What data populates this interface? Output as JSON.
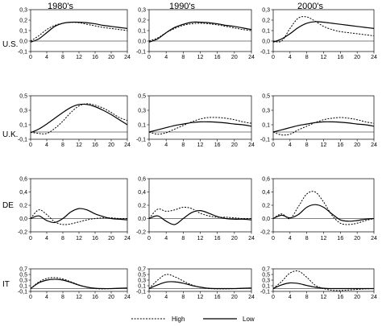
{
  "col_titles": [
    "1980's",
    "1990's",
    "2000's"
  ],
  "row_labels": [
    "U.S.",
    "U.K.",
    "DE",
    "IT"
  ],
  "legend": {
    "high_label": "High",
    "low_label": "Low"
  },
  "styles": {
    "high": {
      "color": "#000000",
      "dash": "dotted"
    },
    "low": {
      "color": "#000000",
      "dash": "solid"
    }
  },
  "chart_data": [
    {
      "type": "line",
      "row": "U.S.",
      "column": "1980's",
      "x": [
        0,
        2,
        4,
        6,
        8,
        10,
        12,
        14,
        16,
        18,
        20,
        22,
        24
      ],
      "xticks": [
        0,
        4,
        8,
        12,
        16,
        20,
        24
      ],
      "ylim": [
        -0.1,
        0.3
      ],
      "yticks": [
        -0.1,
        0.0,
        0.1,
        0.2,
        0.3
      ],
      "series": [
        {
          "name": "High",
          "values": [
            0.0,
            0.05,
            0.11,
            0.15,
            0.17,
            0.18,
            0.175,
            0.16,
            0.145,
            0.13,
            0.12,
            0.11,
            0.1
          ]
        },
        {
          "name": "Low",
          "values": [
            -0.01,
            0.02,
            0.08,
            0.14,
            0.17,
            0.18,
            0.18,
            0.175,
            0.165,
            0.15,
            0.14,
            0.13,
            0.12
          ]
        }
      ]
    },
    {
      "type": "line",
      "row": "U.S.",
      "column": "1990's",
      "x": [
        0,
        2,
        4,
        6,
        8,
        10,
        12,
        14,
        16,
        18,
        20,
        22,
        24
      ],
      "xticks": [
        0,
        4,
        8,
        12,
        16,
        20,
        24
      ],
      "ylim": [
        -0.1,
        0.3
      ],
      "yticks": [
        -0.1,
        0.0,
        0.1,
        0.2,
        0.3
      ],
      "series": [
        {
          "name": "High",
          "values": [
            0.0,
            0.03,
            0.08,
            0.12,
            0.15,
            0.165,
            0.17,
            0.165,
            0.155,
            0.14,
            0.125,
            0.11,
            0.1
          ]
        },
        {
          "name": "Low",
          "values": [
            -0.01,
            0.02,
            0.08,
            0.13,
            0.16,
            0.18,
            0.18,
            0.175,
            0.165,
            0.15,
            0.14,
            0.125,
            0.11
          ]
        }
      ]
    },
    {
      "type": "line",
      "row": "U.S.",
      "column": "2000's",
      "x": [
        0,
        2,
        4,
        6,
        8,
        10,
        12,
        14,
        16,
        18,
        20,
        22,
        24
      ],
      "xticks": [
        0,
        4,
        8,
        12,
        16,
        20,
        24
      ],
      "ylim": [
        -0.1,
        0.3
      ],
      "yticks": [
        -0.1,
        0.0,
        0.1,
        0.2,
        0.3
      ],
      "series": [
        {
          "name": "High",
          "values": [
            0.0,
            0.0,
            0.12,
            0.22,
            0.23,
            0.19,
            0.14,
            0.11,
            0.09,
            0.08,
            0.07,
            0.06,
            0.05
          ]
        },
        {
          "name": "Low",
          "values": [
            -0.01,
            0.02,
            0.07,
            0.13,
            0.17,
            0.185,
            0.18,
            0.17,
            0.16,
            0.15,
            0.14,
            0.13,
            0.12
          ]
        }
      ]
    },
    {
      "type": "line",
      "row": "U.K.",
      "column": "1980's",
      "x": [
        0,
        2,
        4,
        6,
        8,
        10,
        12,
        14,
        16,
        18,
        20,
        22,
        24
      ],
      "xticks": [
        0,
        4,
        8,
        12,
        16,
        20,
        24
      ],
      "ylim": [
        -0.1,
        0.5
      ],
      "yticks": [
        -0.1,
        0.1,
        0.3,
        0.5
      ],
      "series": [
        {
          "name": "High",
          "values": [
            0.0,
            -0.02,
            -0.02,
            0.05,
            0.15,
            0.27,
            0.36,
            0.39,
            0.37,
            0.33,
            0.27,
            0.2,
            0.16
          ]
        },
        {
          "name": "Low",
          "values": [
            -0.01,
            0.04,
            0.11,
            0.19,
            0.27,
            0.34,
            0.38,
            0.38,
            0.35,
            0.3,
            0.24,
            0.17,
            0.1
          ]
        }
      ]
    },
    {
      "type": "line",
      "row": "U.K.",
      "column": "1990's",
      "x": [
        0,
        2,
        4,
        6,
        8,
        10,
        12,
        14,
        16,
        18,
        20,
        22,
        24
      ],
      "xticks": [
        0,
        4,
        8,
        12,
        16,
        20,
        24
      ],
      "ylim": [
        -0.1,
        0.5
      ],
      "yticks": [
        -0.1,
        0.1,
        0.3,
        0.5
      ],
      "series": [
        {
          "name": "High",
          "values": [
            0.0,
            -0.03,
            -0.01,
            0.04,
            0.09,
            0.14,
            0.18,
            0.2,
            0.2,
            0.19,
            0.17,
            0.14,
            0.12
          ]
        },
        {
          "name": "Low",
          "values": [
            0.0,
            0.03,
            0.06,
            0.09,
            0.11,
            0.13,
            0.14,
            0.14,
            0.135,
            0.125,
            0.11,
            0.1,
            0.08
          ]
        }
      ]
    },
    {
      "type": "line",
      "row": "U.K.",
      "column": "2000's",
      "x": [
        0,
        2,
        4,
        6,
        8,
        10,
        12,
        14,
        16,
        18,
        20,
        22,
        24
      ],
      "xticks": [
        0,
        4,
        8,
        12,
        16,
        20,
        24
      ],
      "ylim": [
        -0.1,
        0.5
      ],
      "yticks": [
        -0.1,
        0.1,
        0.3,
        0.5
      ],
      "series": [
        {
          "name": "High",
          "values": [
            0.0,
            -0.04,
            -0.03,
            0.03,
            0.08,
            0.13,
            0.17,
            0.19,
            0.2,
            0.19,
            0.17,
            0.14,
            0.12
          ]
        },
        {
          "name": "Low",
          "values": [
            0.0,
            0.03,
            0.06,
            0.09,
            0.11,
            0.13,
            0.14,
            0.14,
            0.135,
            0.125,
            0.11,
            0.1,
            0.08
          ]
        }
      ]
    },
    {
      "type": "line",
      "row": "DE",
      "column": "1980's",
      "x": [
        0,
        2,
        4,
        6,
        8,
        10,
        12,
        14,
        16,
        18,
        20,
        22,
        24
      ],
      "xticks": [
        0,
        4,
        8,
        12,
        16,
        20,
        24
      ],
      "ylim": [
        -0.2,
        0.6
      ],
      "yticks": [
        -0.2,
        0.0,
        0.2,
        0.4,
        0.6
      ],
      "series": [
        {
          "name": "High",
          "values": [
            0.0,
            0.13,
            0.06,
            -0.05,
            -0.09,
            -0.08,
            -0.05,
            -0.02,
            0.0,
            0.01,
            0.01,
            0.0,
            0.0
          ]
        },
        {
          "name": "Low",
          "values": [
            0.0,
            0.04,
            -0.03,
            -0.06,
            0.0,
            0.1,
            0.15,
            0.13,
            0.07,
            0.03,
            0.0,
            -0.01,
            -0.02
          ]
        }
      ]
    },
    {
      "type": "line",
      "row": "DE",
      "column": "1990's",
      "x": [
        0,
        2,
        4,
        6,
        8,
        10,
        12,
        14,
        16,
        18,
        20,
        22,
        24
      ],
      "xticks": [
        0,
        4,
        8,
        12,
        16,
        20,
        24
      ],
      "ylim": [
        -0.2,
        0.6
      ],
      "yticks": [
        -0.2,
        0.0,
        0.2,
        0.4,
        0.6
      ],
      "series": [
        {
          "name": "High",
          "values": [
            0.0,
            0.14,
            0.11,
            0.13,
            0.17,
            0.15,
            0.08,
            0.04,
            0.02,
            0.02,
            0.01,
            0.0,
            0.0
          ]
        },
        {
          "name": "Low",
          "values": [
            0.0,
            0.04,
            -0.04,
            -0.09,
            0.0,
            0.09,
            0.12,
            0.08,
            0.03,
            0.0,
            -0.01,
            -0.01,
            -0.02
          ]
        }
      ]
    },
    {
      "type": "line",
      "row": "DE",
      "column": "2000's",
      "x": [
        0,
        2,
        4,
        6,
        8,
        10,
        12,
        14,
        16,
        18,
        20,
        22,
        24
      ],
      "xticks": [
        0,
        4,
        8,
        12,
        16,
        20,
        24
      ],
      "ylim": [
        -0.2,
        0.6
      ],
      "yticks": [
        -0.2,
        0.0,
        0.2,
        0.4,
        0.6
      ],
      "series": [
        {
          "name": "High",
          "values": [
            0.0,
            0.07,
            0.0,
            0.18,
            0.37,
            0.4,
            0.25,
            0.05,
            -0.07,
            -0.09,
            -0.07,
            -0.03,
            0.0
          ]
        },
        {
          "name": "Low",
          "values": [
            0.0,
            0.05,
            0.01,
            0.06,
            0.17,
            0.21,
            0.17,
            0.07,
            -0.02,
            -0.04,
            -0.03,
            -0.01,
            0.0
          ]
        }
      ]
    },
    {
      "type": "line",
      "row": "IT",
      "column": "1980's",
      "x": [
        0,
        2,
        4,
        6,
        8,
        10,
        12,
        14,
        16,
        18,
        20,
        22,
        24
      ],
      "xticks": [
        0,
        4,
        8,
        12,
        16,
        20,
        24
      ],
      "ylim": [
        -0.1,
        0.7
      ],
      "yticks": [
        -0.1,
        0.1,
        0.3,
        0.5,
        0.7
      ],
      "series": [
        {
          "name": "High",
          "values": [
            0.0,
            0.23,
            0.36,
            0.39,
            0.34,
            0.24,
            0.13,
            0.05,
            0.0,
            -0.01,
            0.0,
            0.01,
            0.02
          ]
        },
        {
          "name": "Low",
          "values": [
            0.0,
            0.2,
            0.3,
            0.33,
            0.3,
            0.22,
            0.12,
            0.05,
            0.01,
            0.0,
            0.0,
            0.01,
            0.02
          ]
        }
      ]
    },
    {
      "type": "line",
      "row": "IT",
      "column": "1990's",
      "x": [
        0,
        2,
        4,
        6,
        8,
        10,
        12,
        14,
        16,
        18,
        20,
        22,
        24
      ],
      "xticks": [
        0,
        4,
        8,
        12,
        16,
        20,
        24
      ],
      "ylim": [
        -0.1,
        0.7
      ],
      "yticks": [
        -0.1,
        0.1,
        0.3,
        0.5,
        0.7
      ],
      "series": [
        {
          "name": "High",
          "values": [
            0.0,
            0.3,
            0.5,
            0.42,
            0.27,
            0.13,
            0.05,
            0.0,
            -0.01,
            -0.01,
            0.0,
            0.01,
            0.02
          ]
        },
        {
          "name": "Low",
          "values": [
            0.0,
            0.13,
            0.23,
            0.24,
            0.19,
            0.11,
            0.05,
            0.01,
            0.0,
            0.0,
            0.0,
            0.01,
            0.02
          ]
        }
      ]
    },
    {
      "type": "line",
      "row": "IT",
      "column": "2000's",
      "x": [
        0,
        2,
        4,
        6,
        8,
        10,
        12,
        14,
        16,
        18,
        20,
        22,
        24
      ],
      "xticks": [
        0,
        4,
        8,
        12,
        16,
        20,
        24
      ],
      "ylim": [
        -0.1,
        0.7
      ],
      "yticks": [
        -0.1,
        0.1,
        0.3,
        0.5,
        0.7
      ],
      "series": [
        {
          "name": "High",
          "values": [
            0.0,
            0.25,
            0.55,
            0.62,
            0.4,
            0.12,
            0.0,
            -0.06,
            -0.07,
            -0.05,
            -0.03,
            -0.01,
            0.0
          ]
        },
        {
          "name": "Low",
          "values": [
            0.0,
            0.13,
            0.2,
            0.18,
            0.11,
            0.05,
            0.01,
            0.0,
            0.0,
            0.0,
            0.0,
            0.0,
            0.0
          ]
        }
      ]
    }
  ]
}
